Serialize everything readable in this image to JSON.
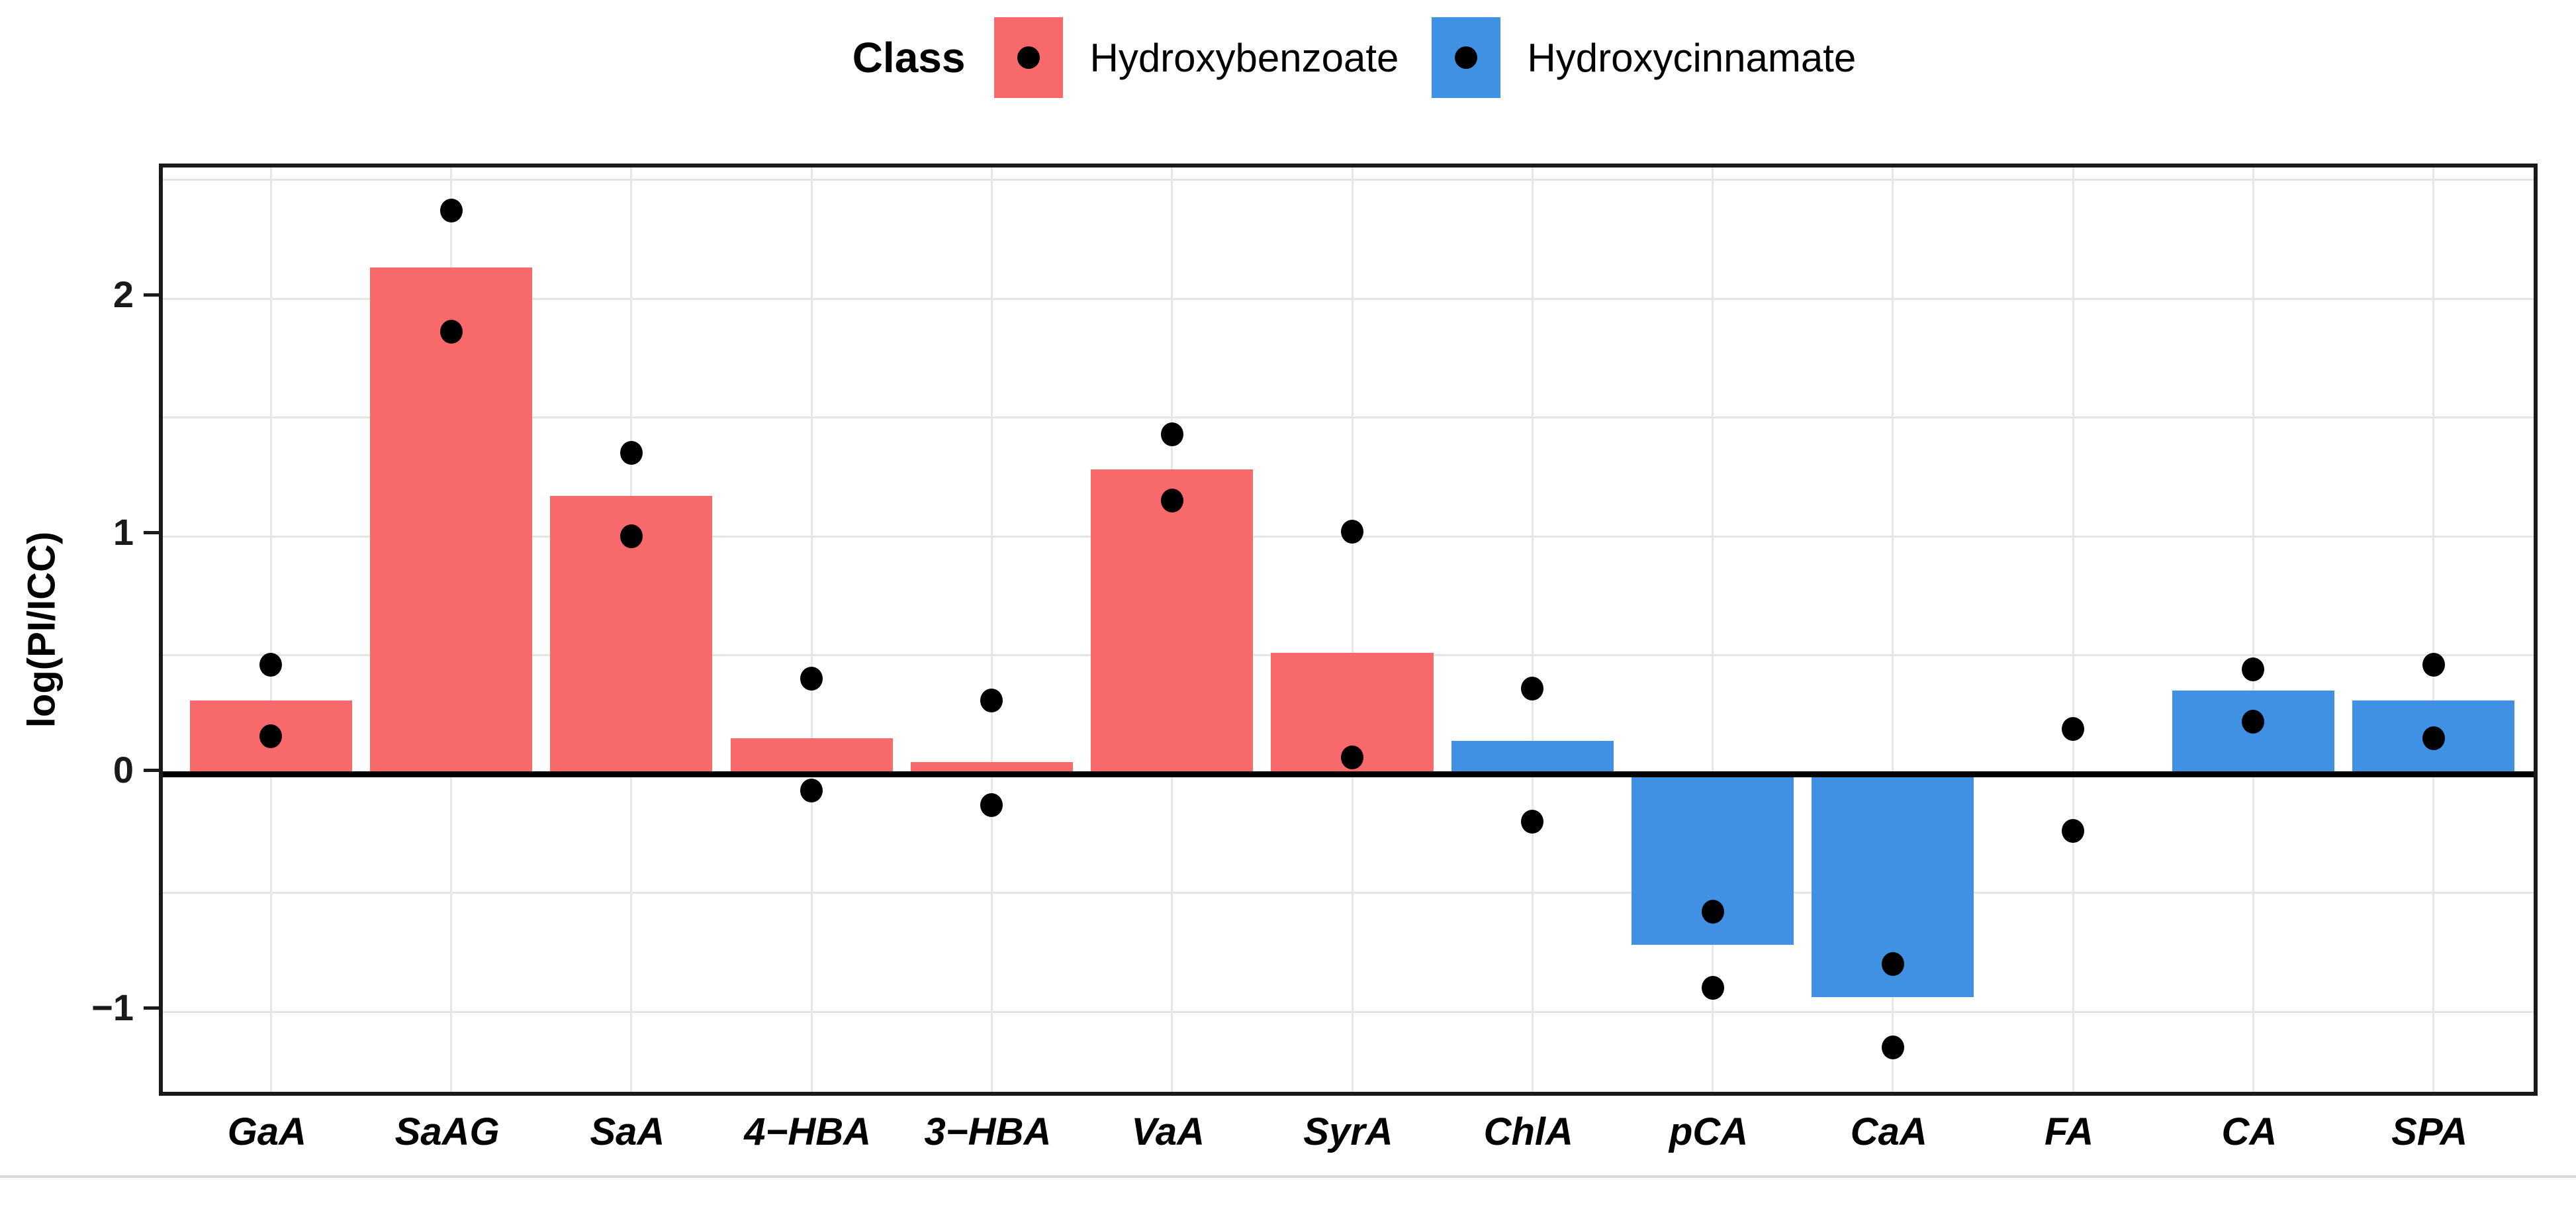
{
  "figure": {
    "background": "#FFFFFF"
  },
  "legend": {
    "title": "Class",
    "marker": "black-dot",
    "items": [
      {
        "label": "Hydroxybenzoate",
        "color": "#F8696B"
      },
      {
        "label": "Hydroxycinnamate",
        "color": "#4090E4"
      }
    ]
  },
  "chart_data": {
    "type": "bar",
    "title": "",
    "xlabel": "",
    "ylabel": "log(PI/ICC)",
    "categories": [
      "GaA",
      "SaAG",
      "SaA",
      "4−HBA",
      "3−HBA",
      "VaA",
      "SyrA",
      "ChlA",
      "pCA",
      "CaA",
      "FA",
      "CA",
      "SPA"
    ],
    "class_by_category": [
      "Hydroxybenzoate",
      "Hydroxybenzoate",
      "Hydroxybenzoate",
      "Hydroxybenzoate",
      "Hydroxybenzoate",
      "Hydroxybenzoate",
      "Hydroxybenzoate",
      "Hydroxycinnamate",
      "Hydroxycinnamate",
      "Hydroxycinnamate",
      "Hydroxycinnamate",
      "Hydroxycinnamate",
      "Hydroxycinnamate"
    ],
    "series": [
      {
        "name": "bar height log(PI/ICC)",
        "values": [
          0.31,
          2.13,
          1.17,
          0.15,
          0.05,
          1.28,
          0.51,
          0.14,
          -0.72,
          -0.94,
          0.01,
          0.35,
          0.31
        ]
      }
    ],
    "replicate_points": [
      [
        0.46,
        0.16
      ],
      [
        2.37,
        1.86
      ],
      [
        1.35,
        1.0
      ],
      [
        0.4,
        -0.07
      ],
      [
        0.31,
        -0.13
      ],
      [
        1.43,
        1.15
      ],
      [
        1.02,
        0.07
      ],
      [
        0.36,
        -0.2
      ],
      [
        -0.58,
        -0.9
      ],
      [
        -0.8,
        -1.15
      ],
      [
        0.19,
        -0.24
      ],
      [
        0.44,
        0.22
      ],
      [
        0.46,
        0.15
      ]
    ],
    "bar_colors": {
      "Hydroxybenzoate": "#F8696B",
      "Hydroxycinnamate": "#4090E4"
    },
    "point_color": "#000000",
    "yticks": [
      -1,
      0,
      1,
      2
    ],
    "ytick_labels": [
      "−1",
      "0",
      "1",
      "2"
    ],
    "ylim": [
      -1.37,
      2.55
    ],
    "grid_step": 0.5,
    "grid": true,
    "zero_line": true,
    "legend_position": "top"
  }
}
